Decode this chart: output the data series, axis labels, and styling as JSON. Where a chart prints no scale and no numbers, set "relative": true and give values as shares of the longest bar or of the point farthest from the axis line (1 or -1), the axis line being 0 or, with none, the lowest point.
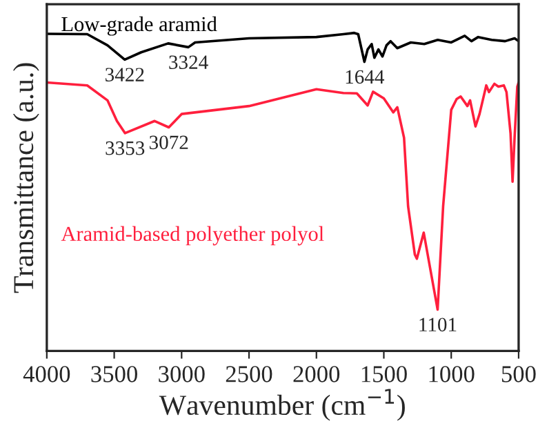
{
  "chart_data": {
    "type": "line",
    "relative": true,
    "xlabel": "Wavenumber (cm$^{−1}$)",
    "ylabel": "Transmittance (a.u.)",
    "xlim": [
      4000,
      500
    ],
    "xticks": [
      4000,
      3500,
      3000,
      2500,
      2000,
      1500,
      1000,
      500
    ],
    "grid": false,
    "legend": false,
    "tick_labels": "x",
    "series": [
      {
        "name": "Low-grade aramid",
        "color": "#000000",
        "x": [
          4000,
          3700,
          3550,
          3422,
          3300,
          3100,
          2950,
          2900,
          2500,
          2000,
          1800,
          1720,
          1690,
          1644,
          1620,
          1590,
          1570,
          1540,
          1510,
          1480,
          1450,
          1400,
          1300,
          1200,
          1100,
          1000,
          900,
          850,
          800,
          700,
          600,
          530,
          500
        ],
        "values": [
          0.997,
          0.996,
          0.961,
          0.916,
          0.939,
          0.967,
          0.955,
          0.97,
          0.983,
          0.987,
          0.996,
          1.0,
          0.996,
          0.909,
          0.948,
          0.965,
          0.922,
          0.948,
          0.926,
          0.961,
          0.974,
          0.952,
          0.97,
          0.965,
          0.978,
          0.97,
          0.991,
          0.974,
          0.987,
          0.978,
          0.974,
          0.983,
          0.974
        ]
      },
      {
        "name": "Aramid-based polyether polyol",
        "color": "#ff1f3d",
        "x": [
          4000,
          3700,
          3550,
          3480,
          3420,
          3200,
          3095,
          3000,
          2500,
          2000,
          1800,
          1700,
          1620,
          1580,
          1500,
          1430,
          1400,
          1350,
          1320,
          1270,
          1255,
          1204,
          1101,
          1060,
          1000,
          960,
          930,
          880,
          860,
          820,
          790,
          740,
          720,
          680,
          650,
          610,
          590,
          560,
          545,
          530,
          510,
          500
        ],
        "values": [
          0.844,
          0.835,
          0.788,
          0.723,
          0.685,
          0.723,
          0.703,
          0.745,
          0.77,
          0.823,
          0.811,
          0.81,
          0.772,
          0.815,
          0.794,
          0.75,
          0.766,
          0.67,
          0.455,
          0.303,
          0.29,
          0.372,
          0.13,
          0.455,
          0.758,
          0.792,
          0.8,
          0.77,
          0.788,
          0.706,
          0.745,
          0.835,
          0.814,
          0.84,
          0.831,
          0.835,
          0.814,
          0.684,
          0.532,
          0.671,
          0.831,
          0.844
        ]
      }
    ],
    "annotations": [
      {
        "text": "3422",
        "x": 3422,
        "y": 0.916
      },
      {
        "text": "3324",
        "x": 2950,
        "y": 0.955
      },
      {
        "text": "1644",
        "x": 1644,
        "y": 0.909
      },
      {
        "text": "3353",
        "x": 3420,
        "y": 0.685
      },
      {
        "text": "3072",
        "x": 3095,
        "y": 0.703
      },
      {
        "text": "1101",
        "x": 1101,
        "y": 0.13
      }
    ]
  }
}
